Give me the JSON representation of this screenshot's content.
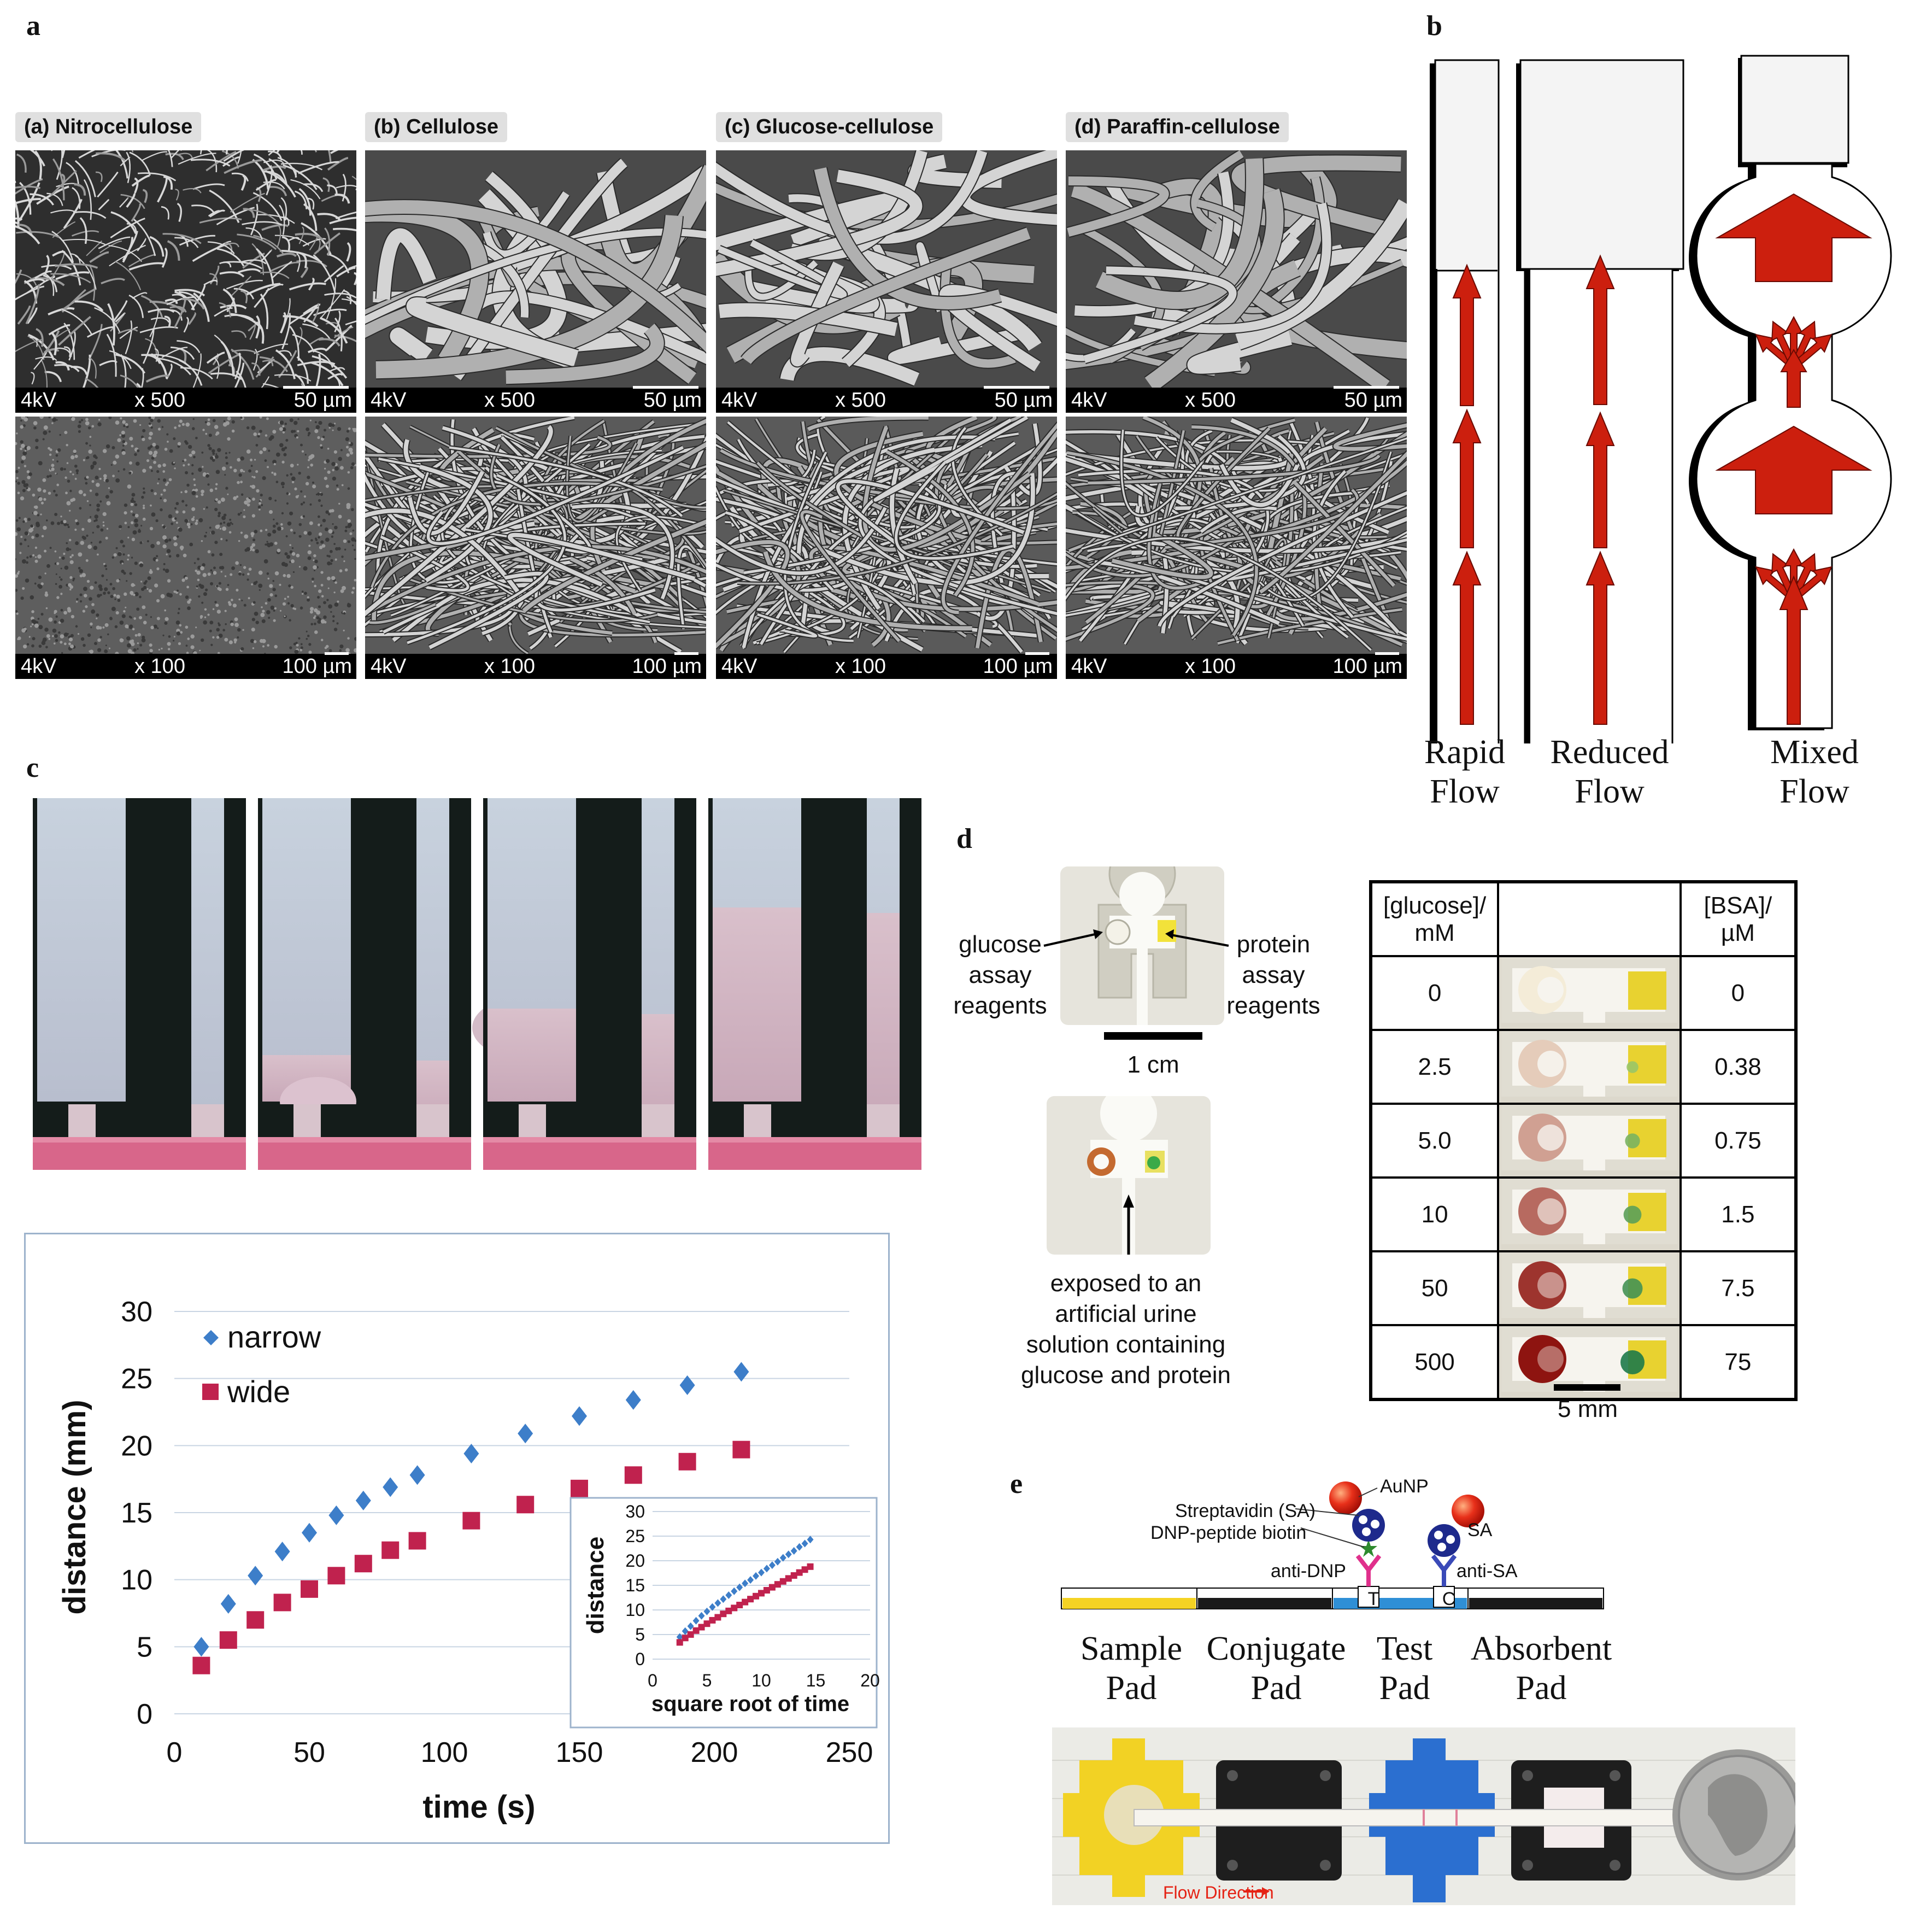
{
  "panel_labels": {
    "a": "a",
    "b": "b",
    "c": "c",
    "d": "d",
    "e": "e"
  },
  "panel_a": {
    "titles": [
      "(a) Nitrocellulose",
      "(b) Cellulose",
      "(c) Glucose-cellulose",
      "(d) Paraffin-cellulose"
    ],
    "top_bar": {
      "kv": "4kV",
      "mag": "x 500",
      "scale": "50 µm"
    },
    "bottom_bar": {
      "kv": "4kV",
      "mag": "x 100",
      "scale": "100 µm"
    }
  },
  "panel_b": {
    "captions": [
      {
        "line1": "Rapid",
        "line2": "Flow"
      },
      {
        "line1": "Reduced",
        "line2": "Flow"
      },
      {
        "line1": "Mixed",
        "line2": "Flow"
      }
    ],
    "colors": {
      "arrow": "#cc1f0e"
    }
  },
  "panel_c": {
    "chart_data": [
      {
        "type": "scatter",
        "title": "",
        "xlabel": "time (s)",
        "ylabel": "distance (mm)",
        "xlim": [
          0,
          250
        ],
        "ylim": [
          0,
          30
        ],
        "xticks": [
          "0",
          "50",
          "100",
          "150",
          "200",
          "250"
        ],
        "yticks": [
          "0",
          "5",
          "10",
          "15",
          "20",
          "25",
          "30"
        ],
        "legend": "top-left",
        "series": [
          {
            "name": "narrow",
            "color": "#3d7ec9",
            "marker": "diamond",
            "x": [
              10,
              20,
              30,
              40,
              50,
              60,
              70,
              80,
              90,
              110,
              130,
              150,
              170,
              190,
              210
            ],
            "y": [
              5.0,
              8.2,
              10.3,
              12.1,
              13.5,
              14.8,
              15.9,
              16.9,
              17.8,
              19.4,
              20.9,
              22.2,
              23.4,
              24.5,
              25.5
            ]
          },
          {
            "name": "wide",
            "color": "#c0224e",
            "marker": "square",
            "x": [
              10,
              20,
              30,
              40,
              50,
              60,
              70,
              80,
              90,
              110,
              130,
              150,
              170,
              190,
              210
            ],
            "y": [
              3.6,
              5.5,
              7.0,
              8.3,
              9.3,
              10.3,
              11.2,
              12.2,
              12.9,
              14.4,
              15.6,
              16.8,
              17.8,
              18.8,
              19.7
            ]
          }
        ]
      },
      {
        "type": "scatter",
        "title": "",
        "xlabel": "square root of time",
        "ylabel": "distance",
        "xlim": [
          0,
          20
        ],
        "ylim": [
          0,
          30
        ],
        "xticks": [
          "0",
          "5",
          "10",
          "15",
          "20"
        ],
        "yticks": [
          "0",
          "5",
          "10",
          "15",
          "20",
          "25",
          "30"
        ],
        "series": [
          {
            "color": "#3d7ec9",
            "x": [
              2.5,
              3,
              3.5,
              4,
              4.5,
              5,
              5.5,
              6,
              6.5,
              7,
              7.5,
              8,
              8.5,
              9,
              9.5,
              10,
              10.5,
              11,
              11.5,
              12,
              12.5,
              13,
              13.5,
              14,
              14.5
            ],
            "y": [
              4.5,
              5.7,
              6.7,
              7.8,
              8.8,
              9.7,
              10.6,
              11.4,
              12.2,
              13.0,
              13.8,
              14.6,
              15.4,
              16.1,
              16.9,
              17.6,
              18.4,
              19.1,
              19.8,
              20.6,
              21.3,
              22.0,
              22.8,
              23.5,
              24.3
            ]
          },
          {
            "color": "#c0224e",
            "x": [
              2.5,
              3,
              3.5,
              4,
              4.5,
              5,
              5.5,
              6,
              6.5,
              7,
              7.5,
              8,
              8.5,
              9,
              9.5,
              10,
              10.5,
              11,
              11.5,
              12,
              12.5,
              13,
              13.5,
              14,
              14.5
            ],
            "y": [
              3.4,
              4.3,
              5.0,
              5.8,
              6.5,
              7.2,
              7.9,
              8.5,
              9.2,
              9.8,
              10.4,
              11.0,
              11.6,
              12.2,
              12.8,
              13.4,
              14.0,
              14.6,
              15.2,
              15.8,
              16.4,
              17.0,
              17.6,
              18.2,
              18.8
            ]
          }
        ]
      }
    ]
  },
  "panel_d": {
    "left_label": "glucose\nassay\nreagents",
    "right_label": "protein\nassay\nreagents",
    "scale_top": "1 cm",
    "exposed_text": "exposed to an\nartificial urine\nsolution containing\nglucose and protein",
    "table": {
      "headers": [
        "[glucose]/\nmM",
        "",
        "[BSA]/\nµM"
      ],
      "rows": [
        {
          "glucose": "0",
          "bsa": "0",
          "g_level": 0,
          "p_level": 0
        },
        {
          "glucose": "2.5",
          "bsa": "0.38",
          "g_level": 0.15,
          "p_level": 0.2
        },
        {
          "glucose": "5.0",
          "bsa": "0.75",
          "g_level": 0.35,
          "p_level": 0.4
        },
        {
          "glucose": "10",
          "bsa": "1.5",
          "g_level": 0.6,
          "p_level": 0.6
        },
        {
          "glucose": "50",
          "bsa": "7.5",
          "g_level": 0.85,
          "p_level": 0.75
        },
        {
          "glucose": "500",
          "bsa": "75",
          "g_level": 1,
          "p_level": 1
        }
      ],
      "scale": "5 mm"
    }
  },
  "panel_e": {
    "labels": {
      "aunp": "AuNP",
      "sa_full": "Streptavidin (SA)",
      "dnp": "DNP-peptide biotin",
      "anti_dnp": "anti-DNP",
      "sa": "SA",
      "anti_sa": "anti-SA",
      "t": "T",
      "c": "C"
    },
    "pads": [
      {
        "line1": "Sample",
        "line2": "Pad"
      },
      {
        "line1": "Conjugate",
        "line2": "Pad"
      },
      {
        "line1": "Test",
        "line2": "Pad"
      },
      {
        "line1": "Absorbent",
        "line2": "Pad"
      }
    ],
    "flow": "Flow Direction",
    "colors": {
      "sample": "#f5d323",
      "conjugate": "#1a1a1a",
      "test": "#2f8fd6",
      "absorbent": "#1a1a1a"
    }
  }
}
